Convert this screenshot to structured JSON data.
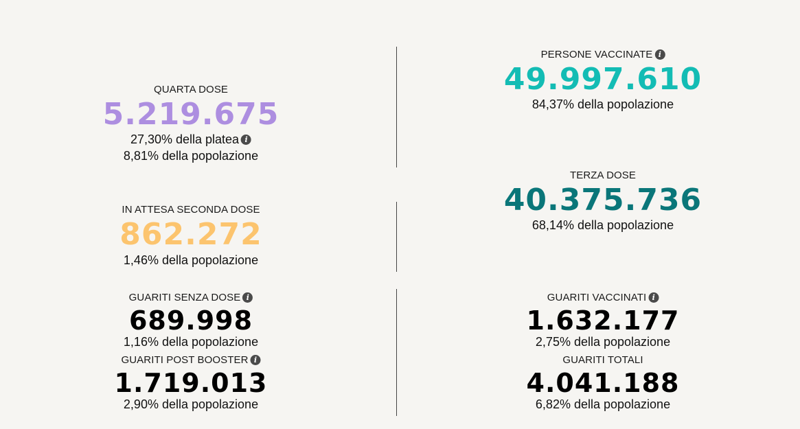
{
  "colors": {
    "quarta": "#ad8ee0",
    "attesa": "#fcc46e",
    "persone": "#13bcb4",
    "terza": "#0a7679",
    "guariti": "#000000"
  },
  "icons": {
    "info": "info-icon"
  },
  "stats": {
    "quarta_dose": {
      "label": "QUARTA DOSE",
      "value": "5.219.675",
      "sub1": "27,30% della platea",
      "sub2": "8,81% della popolazione"
    },
    "persone_vaccinate": {
      "label": "PERSONE VACCINATE",
      "value": "49.997.610",
      "sub1": "84,37% della popolazione"
    },
    "in_attesa": {
      "label": "IN ATTESA SECONDA DOSE",
      "value": "862.272",
      "sub1": "1,46% della popolazione"
    },
    "terza_dose": {
      "label": "TERZA DOSE",
      "value": "40.375.736",
      "sub1": "68,14% della popolazione"
    },
    "guariti_senza_dose": {
      "label": "GUARITI SENZA DOSE",
      "value": "689.998",
      "sub1": "1,16% della popolazione"
    },
    "guariti_vaccinati": {
      "label": "GUARITI VACCINATI",
      "value": "1.632.177",
      "sub1": "2,75% della popolazione"
    },
    "guariti_post_booster": {
      "label": "GUARITI POST BOOSTER",
      "value": "1.719.013",
      "sub1": "2,90% della popolazione"
    },
    "guariti_totali": {
      "label": "GUARITI TOTALI",
      "value": "4.041.188",
      "sub1": "6,82% della popolazione"
    }
  }
}
